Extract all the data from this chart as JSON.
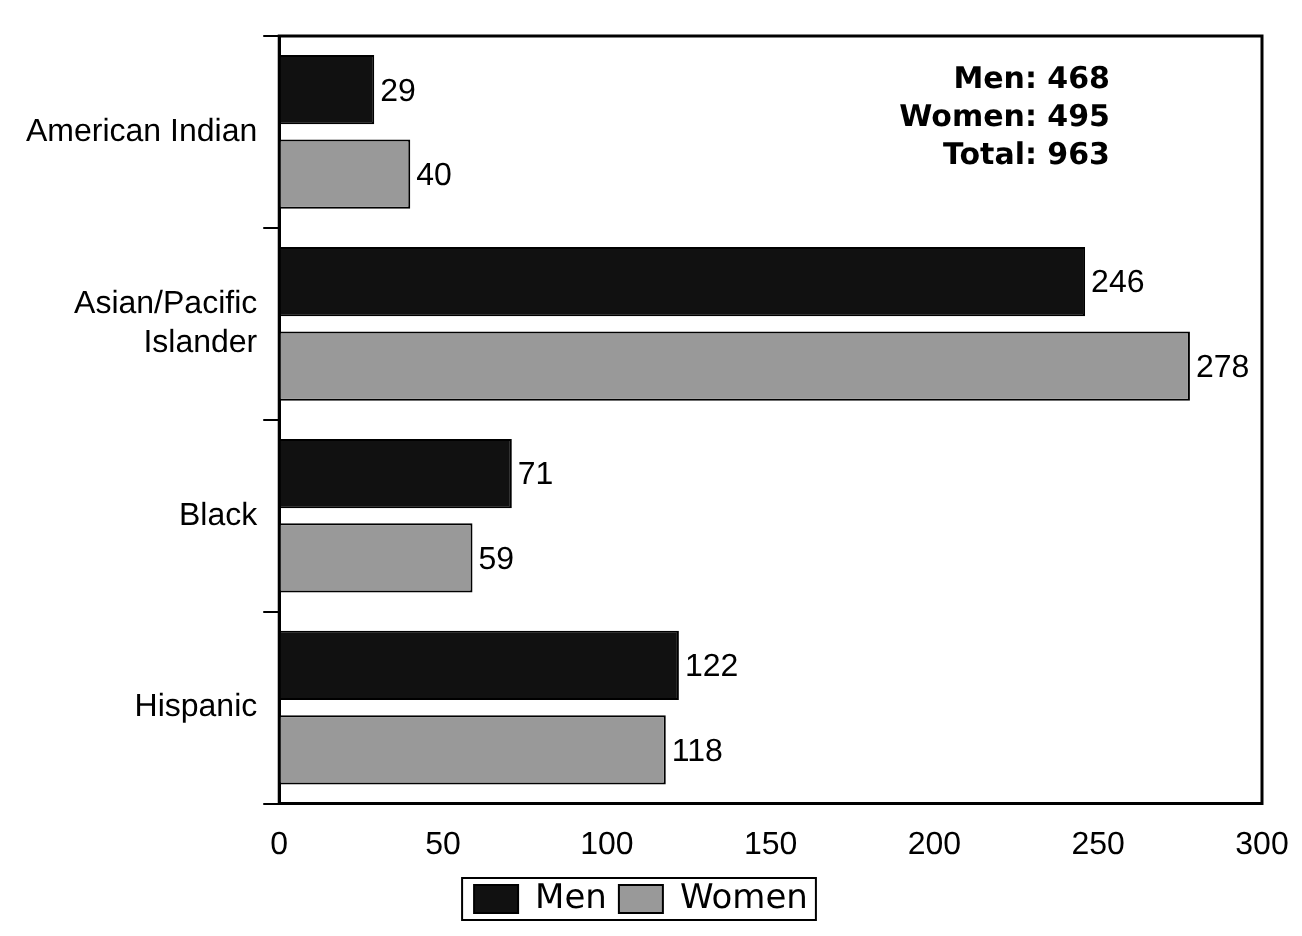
{
  "chart_data": {
    "type": "bar",
    "orientation": "horizontal",
    "categories": [
      "American Indian",
      "Asian/Pacific Islander",
      "Black",
      "Hispanic"
    ],
    "series": [
      {
        "name": "Men",
        "color": "#111111",
        "values": [
          29,
          246,
          71,
          122
        ]
      },
      {
        "name": "Women",
        "color": "#999999",
        "values": [
          40,
          278,
          59,
          118
        ]
      }
    ],
    "xlim": [
      0,
      300
    ],
    "xticks": [
      0,
      50,
      100,
      150,
      200,
      250,
      300
    ],
    "grid": false,
    "legend": "bottom",
    "data_labels": true,
    "annotations": [
      "Men: 468",
      "Women: 495",
      "Total: 963"
    ]
  }
}
